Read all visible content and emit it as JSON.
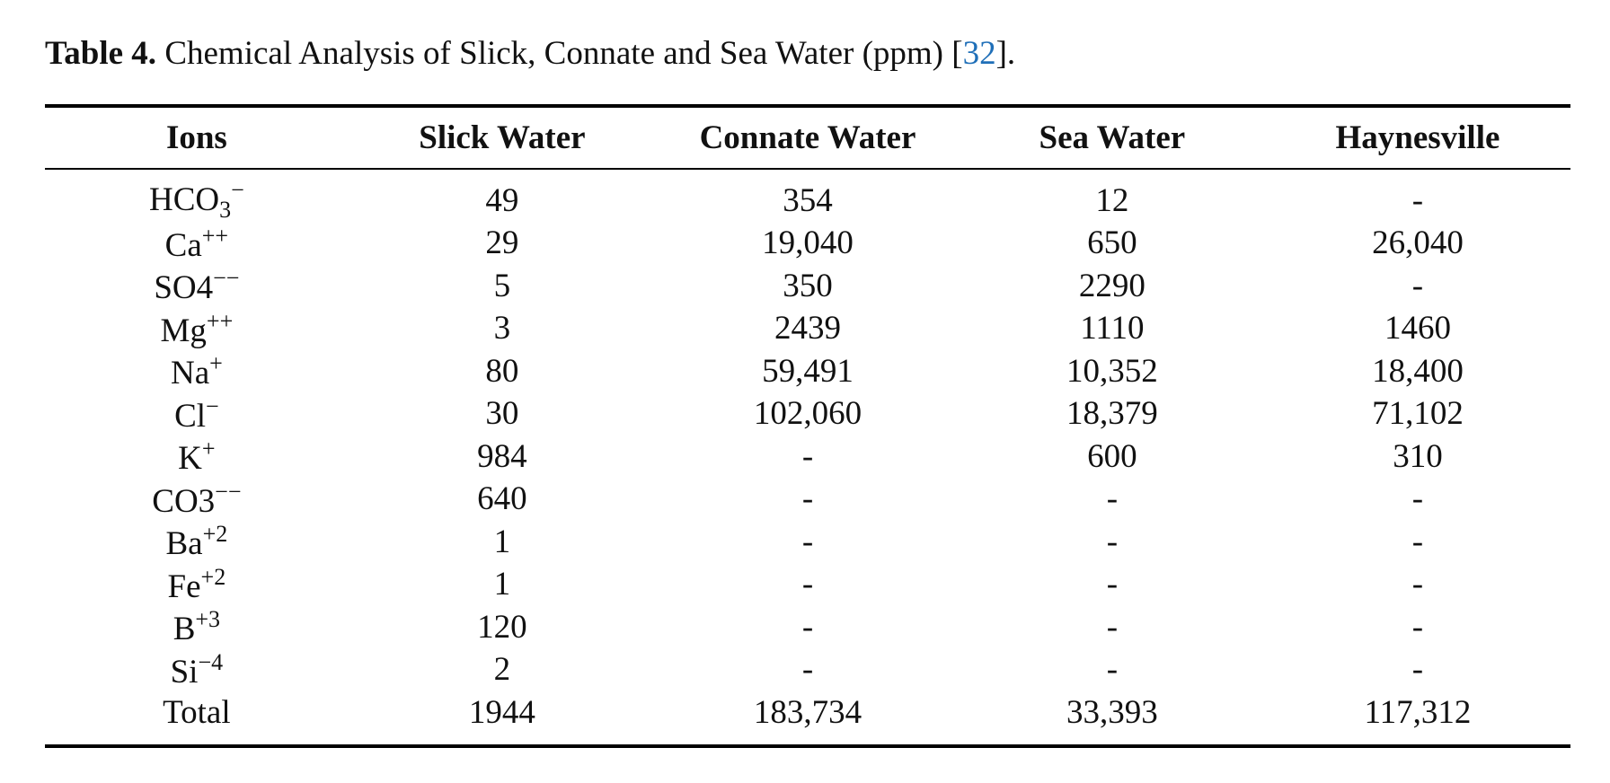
{
  "caption": {
    "label": "Table 4.",
    "text": " Chemical Analysis of Slick, Connate and Sea Water (ppm) [",
    "ref": "32",
    "suffix": "]."
  },
  "table": {
    "headers": [
      "Ions",
      "Slick Water",
      "Connate Water",
      "Sea Water",
      "Haynesville"
    ],
    "rows": [
      {
        "ion_base": "HCO",
        "ion_sub": "3",
        "ion_sup": "−",
        "values": [
          "49",
          "354",
          "12",
          "-"
        ]
      },
      {
        "ion_base": "Ca",
        "ion_sub": "",
        "ion_sup": "++",
        "values": [
          "29",
          "19,040",
          "650",
          "26,040"
        ]
      },
      {
        "ion_base": "SO4",
        "ion_sub": "",
        "ion_sup": "−−",
        "values": [
          "5",
          "350",
          "2290",
          "-"
        ]
      },
      {
        "ion_base": "Mg",
        "ion_sub": "",
        "ion_sup": "++",
        "values": [
          "3",
          "2439",
          "1110",
          "1460"
        ]
      },
      {
        "ion_base": "Na",
        "ion_sub": "",
        "ion_sup": "+",
        "values": [
          "80",
          "59,491",
          "10,352",
          "18,400"
        ]
      },
      {
        "ion_base": "Cl",
        "ion_sub": "",
        "ion_sup": "−",
        "values": [
          "30",
          "102,060",
          "18,379",
          "71,102"
        ]
      },
      {
        "ion_base": "K",
        "ion_sub": "",
        "ion_sup": "+",
        "values": [
          "984",
          "-",
          "600",
          "310"
        ]
      },
      {
        "ion_base": "CO3",
        "ion_sub": "",
        "ion_sup": "−−",
        "values": [
          "640",
          "-",
          "-",
          "-"
        ]
      },
      {
        "ion_base": "Ba",
        "ion_sub": "",
        "ion_sup": "+2",
        "values": [
          "1",
          "-",
          "-",
          "-"
        ]
      },
      {
        "ion_base": "Fe",
        "ion_sub": "",
        "ion_sup": "+2",
        "values": [
          "1",
          "-",
          "-",
          "-"
        ]
      },
      {
        "ion_base": "B",
        "ion_sub": "",
        "ion_sup": "+3",
        "values": [
          "120",
          "-",
          "-",
          "-"
        ]
      },
      {
        "ion_base": "Si",
        "ion_sub": "",
        "ion_sup": "−4",
        "values": [
          "2",
          "-",
          "-",
          "-"
        ]
      },
      {
        "ion_base": "Total",
        "ion_sub": "",
        "ion_sup": "",
        "values": [
          "1944",
          "183,734",
          "33,393",
          "117,312"
        ]
      }
    ]
  }
}
